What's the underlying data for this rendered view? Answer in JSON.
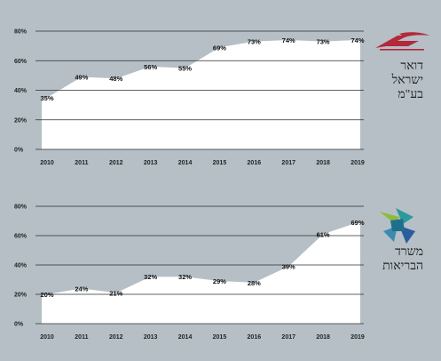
{
  "colors": {
    "background": "#b5bfc5",
    "area_fill": "#ffffff",
    "grid": "#2a2f33",
    "text": "#1e2326",
    "post_logo": "#b3283a",
    "health_logo_green": "#8dbb3e",
    "health_logo_teal": "#2a9a9a",
    "health_logo_blue": "#2b5c9e"
  },
  "chart_data": [
    {
      "type": "area",
      "x": [
        "2010",
        "2011",
        "2012",
        "2013",
        "2014",
        "2015",
        "2016",
        "2017",
        "2018",
        "2019"
      ],
      "values": [
        35,
        49,
        48,
        56,
        55,
        69,
        73,
        74,
        73,
        74
      ],
      "data_labels": [
        "35%",
        "49%",
        "48%",
        "56%",
        "55%",
        "69%",
        "73%",
        "74%",
        "73%",
        "74%"
      ],
      "y_ticks": [
        "0%",
        "20%",
        "40%",
        "60%",
        "80%"
      ],
      "ylim": [
        0,
        80
      ],
      "grid": true,
      "organization": {
        "lines": [
          "דואר",
          "ישראל",
          "בע\"מ"
        ],
        "logo": "israel-post-logo"
      }
    },
    {
      "type": "area",
      "x": [
        "2010",
        "2011",
        "2012",
        "2013",
        "2014",
        "2015",
        "2016",
        "2017",
        "2018",
        "2019"
      ],
      "values": [
        20,
        24,
        21,
        32,
        32,
        29,
        28,
        39,
        61,
        69
      ],
      "data_labels": [
        "20%",
        "24%",
        "21%",
        "32%",
        "32%",
        "29%",
        "28%",
        "39%",
        "61%",
        "69%"
      ],
      "y_ticks": [
        "0%",
        "20%",
        "40%",
        "60%",
        "80%"
      ],
      "ylim": [
        0,
        80
      ],
      "grid": true,
      "organization": {
        "lines": [
          "משרד",
          "הבריאות"
        ],
        "logo": "health-ministry-logo"
      }
    }
  ]
}
